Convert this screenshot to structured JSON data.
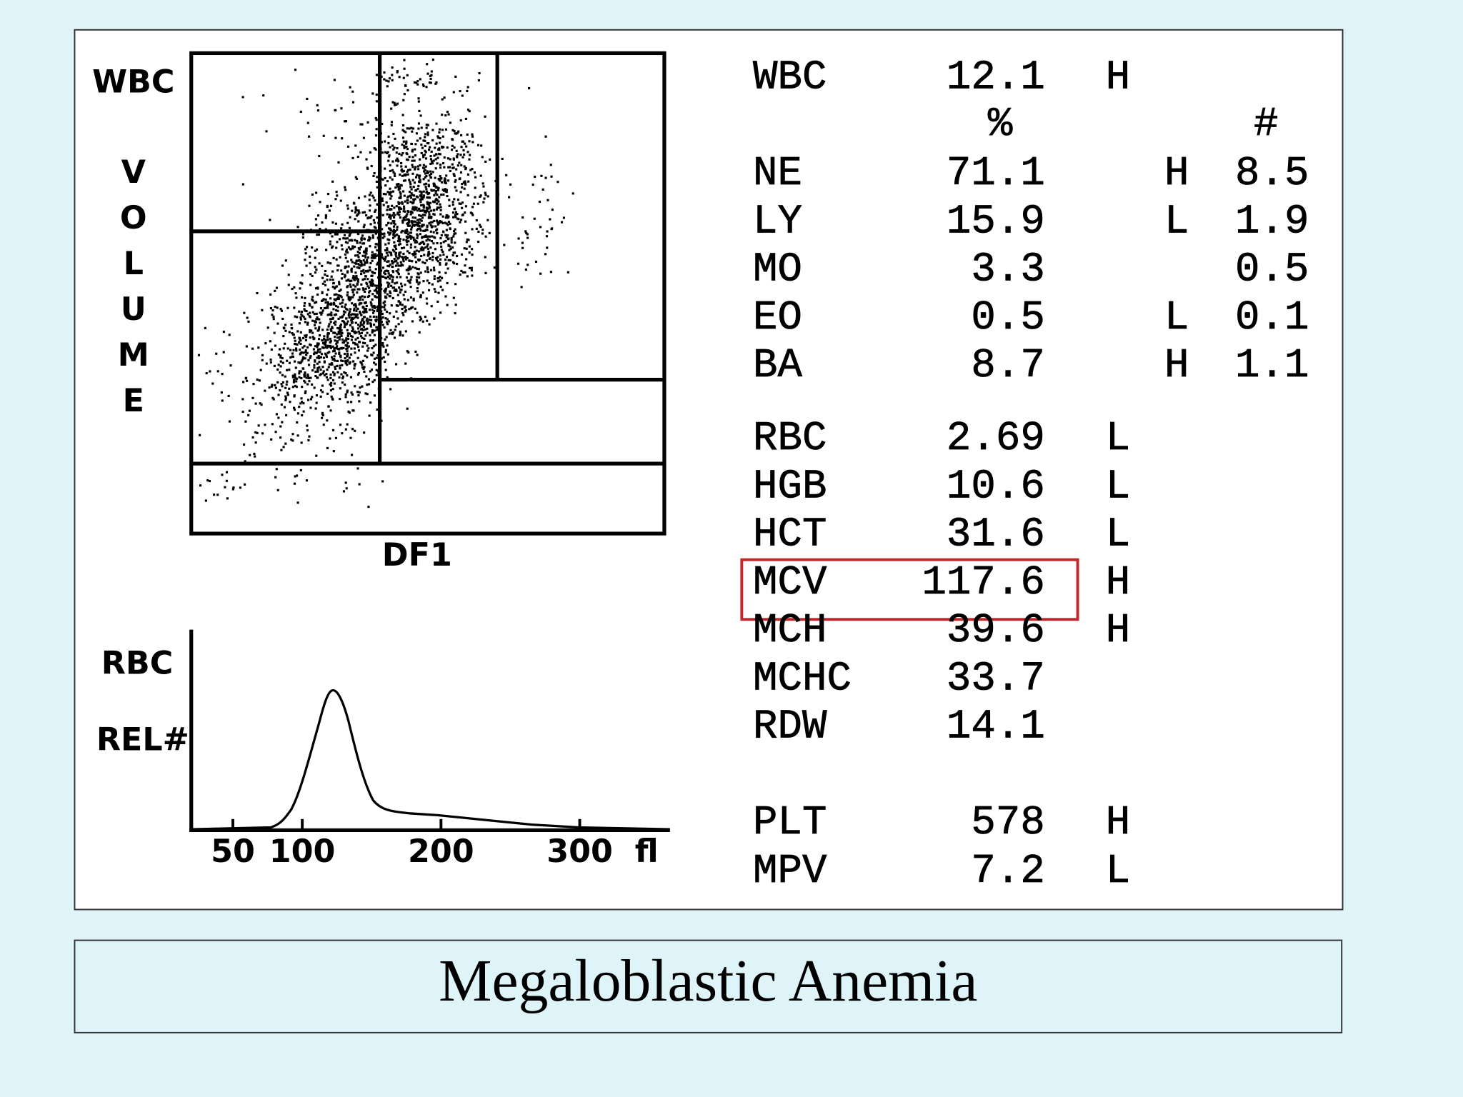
{
  "scatterplot": {
    "title": "WBC",
    "y_label_letters": [
      "V",
      "O",
      "L",
      "U",
      "M",
      "E"
    ],
    "x_label": "DF1"
  },
  "histogram": {
    "y_label": [
      "RBC",
      "REL#"
    ],
    "xlim": [
      20,
      365
    ],
    "xticks": [
      50,
      100,
      200,
      300
    ],
    "x_unit": "fl"
  },
  "results": {
    "wbc": {
      "label": "WBC",
      "value": "12.1",
      "flag": "H"
    },
    "headers": {
      "percent": "%",
      "count": "#"
    },
    "differential": [
      {
        "label": "NE",
        "percent": "71.1",
        "flag": "H",
        "count": "8.5"
      },
      {
        "label": "LY",
        "percent": "15.9",
        "flag": "L",
        "count": "1.9"
      },
      {
        "label": "MO",
        "percent": "3.3",
        "count": "0.5"
      },
      {
        "label": "EO",
        "percent": "0.5",
        "flag": "L",
        "count": "0.1"
      },
      {
        "label": "BA",
        "percent": "8.7",
        "flag": "H",
        "count": "1.1"
      }
    ],
    "red_cells": [
      {
        "label": "RBC",
        "value": "2.69",
        "flag": "L"
      },
      {
        "label": "HGB",
        "value": "10.6",
        "flag": "L"
      },
      {
        "label": "HCT",
        "value": "31.6",
        "flag": "L"
      },
      {
        "label": "MCV",
        "value": "117.6",
        "flag": "H"
      },
      {
        "label": "MCH",
        "value": "39.6",
        "flag": "H"
      },
      {
        "label": "MCHC",
        "value": "33.7"
      },
      {
        "label": "RDW",
        "value": "14.1"
      }
    ],
    "platelets": [
      {
        "label": "PLT",
        "value": "578",
        "flag": "H"
      },
      {
        "label": "MPV",
        "value": "7.2",
        "flag": "L"
      }
    ]
  },
  "caption": "Megaloblastic Anemia"
}
